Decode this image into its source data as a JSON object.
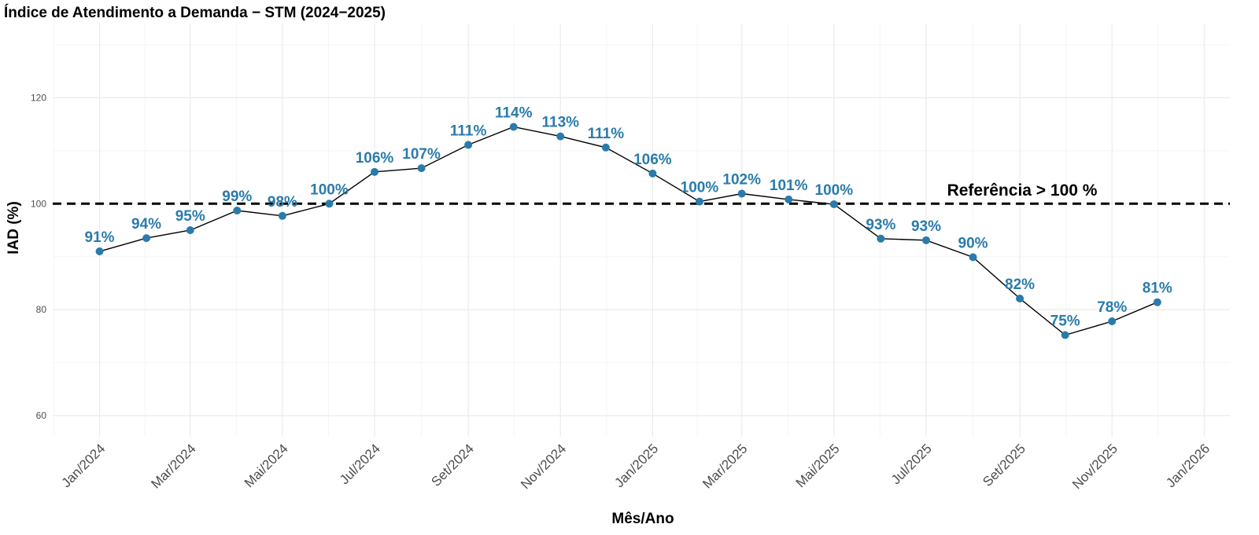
{
  "chart_data": {
    "type": "line",
    "title": "Índice de Atendimento a Demanda − STM (2024−2025)",
    "xlabel": "Mês/Ano",
    "ylabel": "IAD (%)",
    "ylim": [
      56,
      134
    ],
    "yticks": [
      60,
      80,
      100,
      120
    ],
    "grid": true,
    "x_axis_type": "date",
    "xlim": [
      "2023-12-01",
      "2026-01-18"
    ],
    "x_ticks": [
      {
        "date": "2024-01-01",
        "label": "Jan/2024"
      },
      {
        "date": "2024-03-01",
        "label": "Mar/2024"
      },
      {
        "date": "2024-05-01",
        "label": "Mai/2024"
      },
      {
        "date": "2024-07-01",
        "label": "Jul/2024"
      },
      {
        "date": "2024-09-01",
        "label": "Set/2024"
      },
      {
        "date": "2024-11-01",
        "label": "Nov/2024"
      },
      {
        "date": "2025-01-01",
        "label": "Jan/2025"
      },
      {
        "date": "2025-03-01",
        "label": "Mar/2025"
      },
      {
        "date": "2025-05-01",
        "label": "Mai/2025"
      },
      {
        "date": "2025-07-01",
        "label": "Jul/2025"
      },
      {
        "date": "2025-09-01",
        "label": "Set/2025"
      },
      {
        "date": "2025-11-01",
        "label": "Nov/2025"
      },
      {
        "date": "2026-01-01",
        "label": "Jan/2026"
      }
    ],
    "series": [
      {
        "points": [
          {
            "x": "2024-01-01",
            "y": 91.0,
            "label": "91%"
          },
          {
            "x": "2024-02-01",
            "y": 93.5,
            "label": "94%"
          },
          {
            "x": "2024-03-01",
            "y": 95.0,
            "label": "95%"
          },
          {
            "x": "2024-04-01",
            "y": 98.7,
            "label": "99%"
          },
          {
            "x": "2024-05-01",
            "y": 97.7,
            "label": "98%"
          },
          {
            "x": "2024-06-01",
            "y": 100.0,
            "label": "100%"
          },
          {
            "x": "2024-07-01",
            "y": 106.0,
            "label": "106%"
          },
          {
            "x": "2024-08-01",
            "y": 106.7,
            "label": "107%"
          },
          {
            "x": "2024-09-01",
            "y": 111.1,
            "label": "111%"
          },
          {
            "x": "2024-10-01",
            "y": 114.5,
            "label": "114%"
          },
          {
            "x": "2024-11-01",
            "y": 112.7,
            "label": "113%"
          },
          {
            "x": "2024-12-01",
            "y": 110.6,
            "label": "111%"
          },
          {
            "x": "2025-01-01",
            "y": 105.7,
            "label": "106%"
          },
          {
            "x": "2025-02-01",
            "y": 100.4,
            "label": "100%"
          },
          {
            "x": "2025-03-01",
            "y": 101.9,
            "label": "102%"
          },
          {
            "x": "2025-04-01",
            "y": 100.8,
            "label": "101%"
          },
          {
            "x": "2025-05-01",
            "y": 99.9,
            "label": "100%"
          },
          {
            "x": "2025-06-01",
            "y": 93.4,
            "label": "93%"
          },
          {
            "x": "2025-07-01",
            "y": 93.1,
            "label": "93%"
          },
          {
            "x": "2025-08-01",
            "y": 89.9,
            "label": "90%"
          },
          {
            "x": "2025-09-01",
            "y": 82.1,
            "label": "82%"
          },
          {
            "x": "2025-10-01",
            "y": 75.2,
            "label": "75%"
          },
          {
            "x": "2025-11-01",
            "y": 77.8,
            "label": "78%"
          },
          {
            "x": "2025-12-01",
            "y": 81.4,
            "label": "81%"
          }
        ]
      }
    ],
    "reference_line": {
      "y": 100,
      "label": "Referência > 100 %",
      "style": "dashed"
    },
    "colors": {
      "points": "#2a7bab",
      "labels": "#2a7bab",
      "line": "#000000",
      "reference": "#000000",
      "grid_major": "#ebebeb",
      "grid_minor": "#f5f5f5"
    }
  }
}
